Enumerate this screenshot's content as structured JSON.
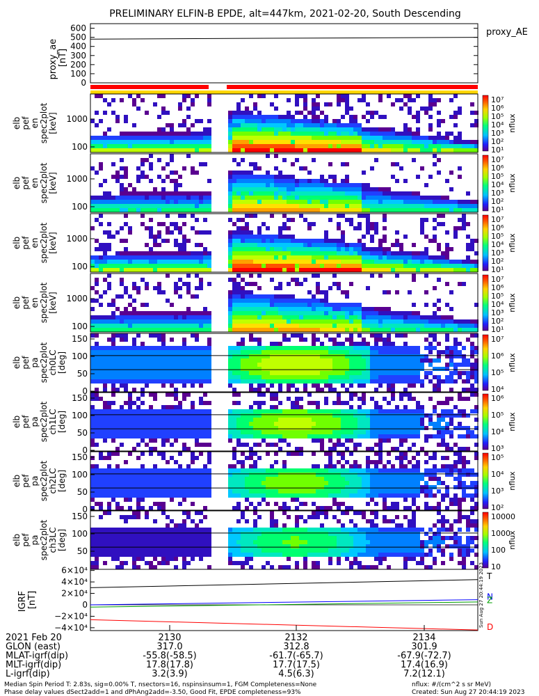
{
  "title": "PRELIMINARY ELFIN-B EPDE, alt=447km, 2021-02-20, South Descending",
  "colors": {
    "red": "#ff0000",
    "yellow": "#ffd700",
    "green": "#00a000",
    "blue": "#0000ff"
  },
  "chart_data": [
    {
      "type": "line",
      "ylabel": [
        "proxy_ae",
        "[nT]"
      ],
      "yticks": [
        "600",
        "500",
        "400",
        "300",
        "200",
        "100",
        "0"
      ],
      "ylim": [
        0,
        650
      ],
      "series": [
        {
          "name": "proxy_AE",
          "values": [
            480,
            500
          ]
        }
      ],
      "legend": "proxy_AE"
    },
    {
      "type": "heatmap",
      "panels": [
        {
          "ylabel": [
            "elb",
            "pef",
            "en",
            "spec2plot",
            "[keV]"
          ],
          "yticks": [
            "1000",
            "100"
          ],
          "cbar_label": "nflux",
          "cbar_ticks": [
            "10⁷",
            "10⁶",
            "10⁵",
            "10⁴",
            "10³",
            "10²",
            "10¹"
          ]
        },
        {
          "ylabel": [
            "elb",
            "pef",
            "en",
            "spec2plot",
            "[keV]"
          ],
          "yticks": [
            "1000",
            "100"
          ],
          "cbar_label": "nflux",
          "cbar_ticks": [
            "10⁷",
            "10⁶",
            "10⁵",
            "10⁴",
            "10³",
            "10²",
            "10¹"
          ]
        },
        {
          "ylabel": [
            "elb",
            "pef",
            "en",
            "spec2plot",
            "[keV]"
          ],
          "yticks": [
            "1000",
            "100"
          ],
          "cbar_label": "nflux",
          "cbar_ticks": [
            "10⁷",
            "10⁶",
            "10⁵",
            "10⁴",
            "10³",
            "10²",
            "10¹"
          ]
        },
        {
          "ylabel": [
            "elb",
            "pef",
            "en",
            "spec2plot",
            "[keV]"
          ],
          "yticks": [
            "1000",
            "100"
          ],
          "cbar_label": "nflux",
          "cbar_ticks": [
            "10⁷",
            "10⁶",
            "10⁵",
            "10⁴",
            "10³",
            "10²",
            "10¹"
          ]
        },
        {
          "ylabel": [
            "elb",
            "pef",
            "pa",
            "spec2plot",
            "ch0LC",
            "[deg]"
          ],
          "yticks": [
            "150",
            "100",
            "50",
            "0"
          ],
          "cbar_label": "nflux",
          "cbar_ticks": [
            "10⁷",
            "10⁶",
            "10⁵",
            "10⁴"
          ]
        },
        {
          "ylabel": [
            "elb",
            "pef",
            "pa",
            "spec2plot",
            "ch1LC",
            "[deg]"
          ],
          "yticks": [
            "150",
            "100",
            "50",
            "0"
          ],
          "cbar_label": "nflux",
          "cbar_ticks": [
            "10⁶",
            "10⁵",
            "10⁴",
            "10³"
          ]
        },
        {
          "ylabel": [
            "elb",
            "pef",
            "pa",
            "spec2plot",
            "ch2LC",
            "[deg]"
          ],
          "yticks": [
            "150",
            "100",
            "50",
            "0"
          ],
          "cbar_label": "nflux",
          "cbar_ticks": [
            "10⁵",
            "10⁴",
            "10³",
            "10²"
          ]
        },
        {
          "ylabel": [
            "elb",
            "pef",
            "pa",
            "spec2plot",
            "ch3LC",
            "[deg]"
          ],
          "yticks": [
            "150",
            "100",
            "50"
          ],
          "cbar_label": "nflux",
          "cbar_ticks": [
            "10000",
            "1000",
            "100",
            "10"
          ]
        }
      ]
    },
    {
      "type": "line",
      "ylabel": [
        "IGRF",
        "[nT]"
      ],
      "yticks": [
        "6×10⁴",
        "4×10⁴",
        "2×10⁴",
        "0",
        "−2×10⁴",
        "−4×10⁴"
      ],
      "ylim": [
        -45000,
        62000
      ],
      "series": [
        {
          "name": "T",
          "values": [
            30000,
            44000
          ]
        },
        {
          "name": "N",
          "values": [
            0,
            9000
          ]
        },
        {
          "name": "Z",
          "values": [
            -4000,
            5000
          ]
        },
        {
          "name": "D",
          "values": [
            -26000,
            -44000
          ]
        }
      ]
    }
  ],
  "created_side": "Sun Aug 27 20:44:19 2023",
  "xaxis": {
    "date": "2021 Feb 20",
    "ticks": [
      "2130",
      "2132",
      "2134"
    ],
    "rows": [
      {
        "label": "GLON (east)",
        "values": [
          "317.0",
          "312.8",
          "301.9"
        ]
      },
      {
        "label": "MLAT-igrf(dip)",
        "values": [
          "-55.8(-58.5)",
          "-61.7(-65.7)",
          "-67.9(-72.7)"
        ]
      },
      {
        "label": "MLT-igrf(dip)",
        "values": [
          "17.8(17.8)",
          "17.7(17.5)",
          "17.4(16.9)"
        ]
      },
      {
        "label": "L-igrf(dip)",
        "values": [
          "3.2(3.9)",
          "4.5(6.3)",
          "7.2(12.1)"
        ]
      }
    ]
  },
  "footer": {
    "line1": "Median Spin Period T: 2.83s, sig=0.00% T, nsectors=16, nspinsinsum=1, FGM Completeness=None",
    "line2": "Phase delay values dSect2add=1 and dPhAng2add=-3.50, Good Fit, EPDE completeness=93%",
    "units": "nflux: #/(cm^2 s sr MeV)",
    "created": "Created: Sun Aug 27 20:44:19 2023"
  }
}
